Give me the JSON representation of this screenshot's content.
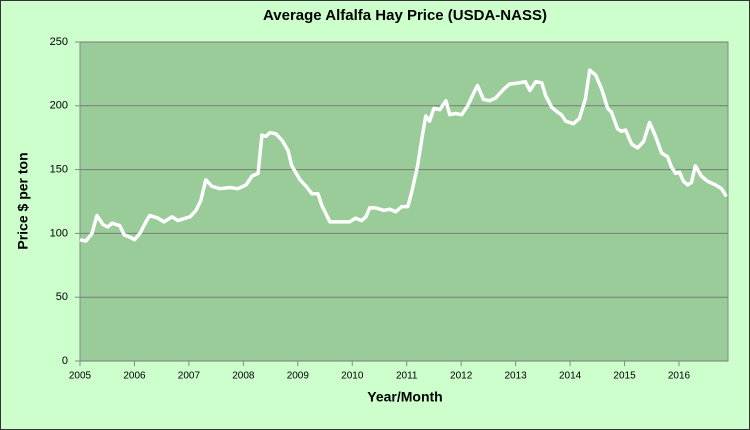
{
  "chart_data": {
    "type": "line",
    "title": "Average Alfalfa Hay Price (USDA-NASS)",
    "x_label": "Year/Month",
    "y_label": "Price $ per ton",
    "x": [
      2005.0,
      2005.11,
      2005.22,
      2005.31,
      2005.42,
      2005.51,
      2005.59,
      2005.73,
      2005.81,
      2005.92,
      2006.0,
      2006.1,
      2006.21,
      2006.28,
      2006.43,
      2006.54,
      2006.69,
      2006.8,
      2007.02,
      2007.13,
      2007.22,
      2007.31,
      2007.42,
      2007.57,
      2007.75,
      2007.9,
      2008.05,
      2008.16,
      2008.27,
      2008.34,
      2008.41,
      2008.49,
      2008.6,
      2008.71,
      2008.82,
      2008.89,
      2009.04,
      2009.15,
      2009.26,
      2009.37,
      2009.44,
      2009.59,
      2009.77,
      2009.95,
      2010.06,
      2010.17,
      2010.25,
      2010.32,
      2010.43,
      2010.58,
      2010.69,
      2010.8,
      2010.91,
      2011.02,
      2011.09,
      2011.2,
      2011.28,
      2011.35,
      2011.42,
      2011.5,
      2011.61,
      2011.72,
      2011.79,
      2011.9,
      2012.01,
      2012.12,
      2012.23,
      2012.3,
      2012.41,
      2012.52,
      2012.63,
      2012.78,
      2012.89,
      2013.07,
      2013.18,
      2013.26,
      2013.37,
      2013.48,
      2013.55,
      2013.66,
      2013.77,
      2013.84,
      2013.92,
      2014.06,
      2014.17,
      2014.28,
      2014.36,
      2014.47,
      2014.58,
      2014.69,
      2014.76,
      2014.87,
      2014.94,
      2015.02,
      2015.13,
      2015.24,
      2015.35,
      2015.46,
      2015.57,
      2015.68,
      2015.79,
      2015.86,
      2015.94,
      2016.01,
      2016.08,
      2016.16,
      2016.23,
      2016.3,
      2016.41,
      2016.52,
      2016.67,
      2016.78,
      2016.87
    ],
    "series": [
      {
        "name": "Average Alfalfa Hay Price",
        "color": "#ffffff",
        "values": [
          95,
          94,
          100,
          114,
          107,
          105,
          108,
          106,
          99,
          97,
          95,
          100,
          109,
          114,
          112,
          109,
          113,
          110,
          113,
          118,
          126,
          142,
          137,
          135,
          136,
          135,
          138,
          145,
          147,
          177,
          176,
          179,
          178,
          173,
          165,
          153,
          142,
          137,
          131,
          131,
          122,
          109,
          109,
          109,
          112,
          110,
          113,
          120,
          120,
          118,
          119,
          117,
          121,
          121,
          132,
          153,
          175,
          192,
          188,
          198,
          197,
          204,
          193,
          194,
          193,
          200,
          210,
          216,
          205,
          204,
          206,
          213,
          217,
          218,
          219,
          212,
          219,
          218,
          208,
          199,
          195,
          193,
          188,
          186,
          190,
          205,
          228,
          224,
          213,
          198,
          195,
          182,
          180,
          181,
          170,
          167,
          172,
          187,
          176,
          163,
          160,
          152,
          147,
          148,
          141,
          138,
          140,
          153,
          145,
          141,
          138,
          135,
          129
        ]
      }
    ],
    "xlim": [
      2005,
      2016.9
    ],
    "xticks": [
      2005,
      2006,
      2007,
      2008,
      2009,
      2010,
      2011,
      2012,
      2013,
      2014,
      2015,
      2016
    ],
    "ylim": [
      0,
      250
    ],
    "yticks": [
      0,
      50,
      100,
      150,
      200,
      250
    ],
    "grid": true,
    "plot_background": "#99cc99"
  }
}
